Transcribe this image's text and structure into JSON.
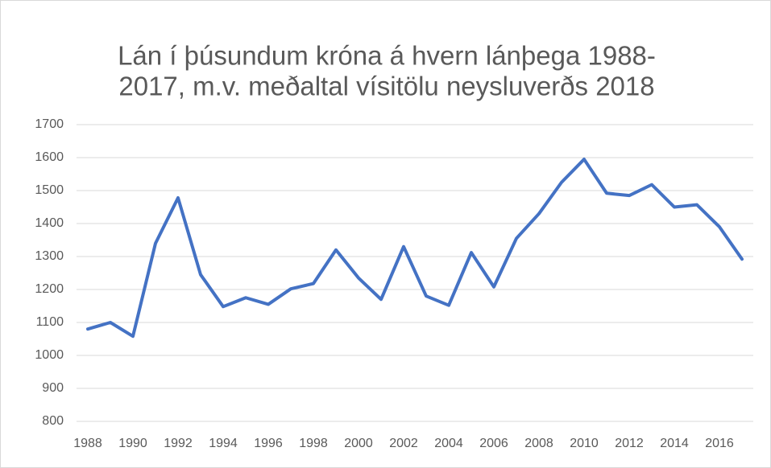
{
  "chart_data": {
    "type": "line",
    "title": [
      "Lán í þúsundum króna á hvern lánþega 1988-",
      "2017, m.v. meðaltal vísitölu neysluverðs 2018"
    ],
    "categories": [
      "1988",
      null,
      "1990",
      null,
      "1992",
      null,
      "1994",
      null,
      "1996",
      null,
      "1998",
      null,
      "2000",
      null,
      "2002",
      null,
      "2004",
      null,
      "2006",
      null,
      "2008",
      null,
      "2010",
      null,
      "2012",
      null,
      "2014",
      null,
      "2016",
      null
    ],
    "values": [
      1080,
      1100,
      1058,
      1340,
      1478,
      1245,
      1148,
      1175,
      1155,
      1202,
      1218,
      1320,
      1235,
      1170,
      1330,
      1180,
      1152,
      1312,
      1208,
      1355,
      1430,
      1525,
      1595,
      1492,
      1485,
      1518,
      1450,
      1457,
      1390,
      1292
    ],
    "color": "#4472c4",
    "ylim": [
      800,
      1700
    ],
    "yticks": [
      800,
      900,
      1000,
      1100,
      1200,
      1300,
      1400,
      1500,
      1600,
      1700
    ],
    "grid": true
  }
}
